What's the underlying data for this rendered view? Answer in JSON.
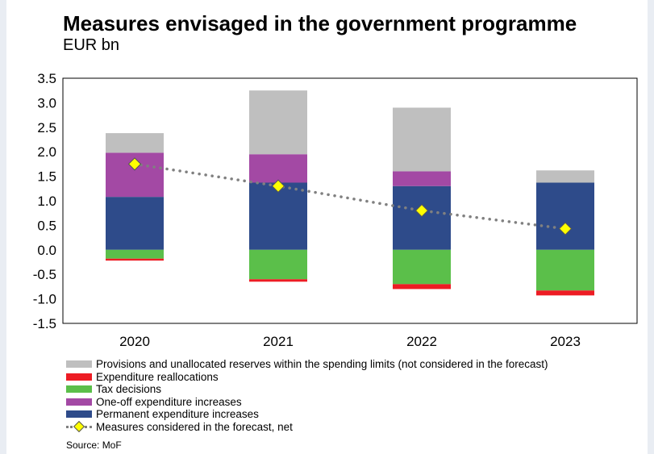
{
  "header": {
    "title": "Measures envisaged in the government programme",
    "subtitle": "EUR bn"
  },
  "source": "Source: MoF",
  "colors": {
    "provisions": "#bfbfbf",
    "reallocations": "#ed1c24",
    "tax": "#5bbf4a",
    "oneoff": "#a349a4",
    "permanent": "#2e4b8a",
    "net_line": "#808080",
    "net_marker": "#ffff00"
  },
  "chart_data": {
    "type": "bar",
    "stacked": true,
    "categories": [
      "2020",
      "2021",
      "2022",
      "2023"
    ],
    "ylim": [
      -1.5,
      3.5
    ],
    "yticks": [
      "3.5",
      "3.0",
      "2.5",
      "2.0",
      "1.5",
      "1.0",
      "0.5",
      "0.0",
      "-0.5",
      "-1.0",
      "-1.5"
    ],
    "ytick_values": [
      3.5,
      3.0,
      2.5,
      2.0,
      1.5,
      1.0,
      0.5,
      0.0,
      -0.5,
      -1.0,
      -1.5
    ],
    "grid": false,
    "legend_position": "bottom",
    "series": [
      {
        "key": "permanent",
        "name": "Permanent expenditure increases",
        "values": [
          1.08,
          1.37,
          1.3,
          1.37
        ]
      },
      {
        "key": "oneoff",
        "name": "One-off expenditure increases",
        "values": [
          0.9,
          0.58,
          0.3,
          0.0
        ]
      },
      {
        "key": "provisions",
        "name": "Provisions and unallocated reserves within the spending limits (not considered in the forecast)",
        "values": [
          0.4,
          1.3,
          1.3,
          0.25
        ]
      },
      {
        "key": "tax",
        "name": "Tax decisions",
        "values": [
          -0.18,
          -0.6,
          -0.7,
          -0.83
        ]
      },
      {
        "key": "reallocations",
        "name": "Expenditure reallocations",
        "values": [
          -0.04,
          -0.05,
          -0.1,
          -0.1
        ]
      }
    ],
    "net": {
      "name": "Measures considered in the forecast, net",
      "values": [
        1.75,
        1.3,
        0.8,
        0.43
      ]
    }
  },
  "legend": [
    {
      "key": "provisions",
      "label": "Provisions and unallocated reserves within the spending limits (not considered in the forecast)"
    },
    {
      "key": "reallocations",
      "label": "Expenditure reallocations"
    },
    {
      "key": "tax",
      "label": "Tax decisions"
    },
    {
      "key": "oneoff",
      "label": "One-off expenditure increases"
    },
    {
      "key": "permanent",
      "label": "Permanent expenditure increases"
    },
    {
      "key": "net",
      "label": "Measures considered in the forecast, net"
    }
  ]
}
